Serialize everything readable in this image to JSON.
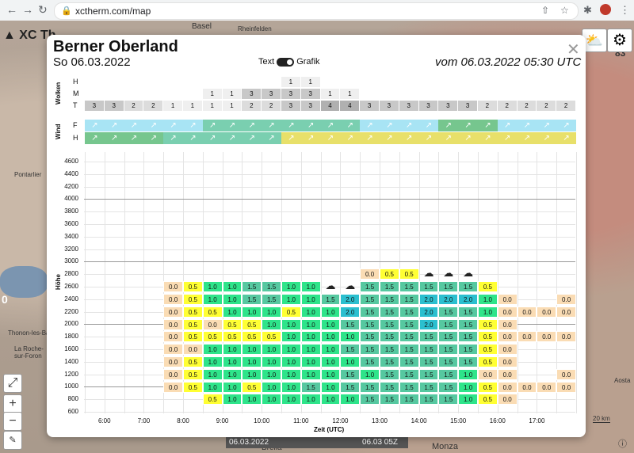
{
  "browser": {
    "url": "xctherm.com/map"
  },
  "map": {
    "app_label": "XC Th",
    "place_labels": [
      "Basel",
      "Rheinfelden",
      "Pontarlier",
      "Thonon-les-Bains",
      "La Roche-sur-Foron",
      "Aosta",
      "Brella",
      "Monza",
      "Bienne"
    ],
    "side_numbers": [
      "83",
      "0"
    ],
    "scale": "20 km",
    "time_left": "06.03.2022",
    "time_right": "06.03 05Z"
  },
  "modal": {
    "title": "Berner Oberland",
    "date": "So 06.03.2022",
    "toggle_text": "Text",
    "toggle_grafik": "Grafik",
    "issued": "vom 06.03.2022 05:30 UTC",
    "wolken_label": "Wolken",
    "wind_label": "Wind",
    "hoehe_label": "Höhe",
    "x_title": "Zeit (UTC)"
  },
  "colors": {
    "yellow": "#ffff33",
    "peach": "#fadcb4",
    "green": "#2ee48a",
    "teal": "#56c8a0",
    "cyan": "#2bbfcf",
    "wind_light": "#a8e4f4",
    "wind_teal": "#7acfb0",
    "wind_green": "#76c68e",
    "wind_yellow": "#e8e06a"
  },
  "clouds": {
    "row_labels": [
      "H",
      "M",
      "T"
    ],
    "H": [
      "",
      "",
      "",
      "",
      "",
      "",
      "",
      "",
      "",
      "",
      "1",
      "1",
      "",
      "",
      "",
      "",
      "",
      "",
      "",
      "",
      "",
      "",
      "",
      "",
      ""
    ],
    "M": [
      "",
      "",
      "",
      "",
      "",
      "",
      "1",
      "1",
      "3",
      "3",
      "3",
      "3",
      "1",
      "1",
      "",
      "",
      "",
      "",
      "",
      "",
      "",
      "",
      "",
      "",
      ""
    ],
    "T": [
      "3",
      "3",
      "2",
      "2",
      "1",
      "1",
      "1",
      "1",
      "2",
      "2",
      "3",
      "3",
      "4",
      "4",
      "3",
      "3",
      "3",
      "3",
      "3",
      "3",
      "2",
      "2",
      "2",
      "2",
      "2"
    ]
  },
  "wind": {
    "row_labels": [
      "F",
      "H"
    ]
  },
  "chart_data": {
    "type": "heatmap",
    "ylabel": "Höhe",
    "xlabel": "Zeit (UTC)",
    "y_ticks": [
      4600,
      4400,
      4200,
      4000,
      3800,
      3600,
      3400,
      3200,
      3000,
      2800,
      2600,
      2400,
      2200,
      2000,
      1800,
      1600,
      1400,
      1200,
      1000,
      800,
      600
    ],
    "x_ticks": [
      "6:00",
      "7:00",
      "8:00",
      "9:00",
      "10:00",
      "11:00",
      "12:00",
      "13:00",
      "14:00",
      "15:00",
      "16:00",
      "17:00"
    ],
    "rows": [
      {
        "alt": 2800,
        "values": [
          "",
          "",
          "",
          "",
          "",
          "",
          "",
          "",
          "",
          "",
          "",
          "",
          "",
          "",
          "0.0",
          "0.5",
          "0.5",
          "",
          "",
          "",
          "",
          "",
          "",
          "",
          ""
        ]
      },
      {
        "alt": 2600,
        "values": [
          "",
          "",
          "",
          "",
          "0.0",
          "0.5",
          "1.0",
          "1.0",
          "1.5",
          "1.5",
          "1.0",
          "1.0",
          "",
          "",
          "1.5",
          "1.5",
          "1.5",
          "1.5",
          "1.5",
          "1.5",
          "0.5",
          "",
          "",
          "",
          ""
        ]
      },
      {
        "alt": 2400,
        "values": [
          "",
          "",
          "",
          "",
          "0.0",
          "0.5",
          "1.0",
          "1.0",
          "1.5",
          "1.5",
          "1.0",
          "1.0",
          "1.5",
          "2.0",
          "1.5",
          "1.5",
          "1.5",
          "2.0",
          "2.0",
          "2.0",
          "1.0",
          "0.0",
          "",
          "",
          "0.0"
        ]
      },
      {
        "alt": 2200,
        "values": [
          "",
          "",
          "",
          "",
          "0.0",
          "0.5",
          "0.5",
          "1.0",
          "1.0",
          "1.0",
          "0.5",
          "1.0",
          "1.0",
          "2.0",
          "1.5",
          "1.5",
          "1.5",
          "2.0",
          "1.5",
          "1.5",
          "1.0",
          "0.0",
          "0.0",
          "0.0",
          "0.0"
        ]
      },
      {
        "alt": 2000,
        "values": [
          "",
          "",
          "",
          "",
          "0.0",
          "0.5",
          "0.0",
          "0.5",
          "0.5",
          "1.0",
          "1.0",
          "1.0",
          "1.0",
          "1.5",
          "1.5",
          "1.5",
          "1.5",
          "2.0",
          "1.5",
          "1.5",
          "0.5",
          "0.0",
          "",
          "",
          ""
        ]
      },
      {
        "alt": 1800,
        "values": [
          "",
          "",
          "",
          "",
          "0.0",
          "0.5",
          "0.5",
          "0.5",
          "0.5",
          "0.5",
          "1.0",
          "1.0",
          "1.0",
          "1.0",
          "1.5",
          "1.5",
          "1.5",
          "1.5",
          "1.5",
          "1.5",
          "0.5",
          "0.0",
          "0.0",
          "0.0",
          "0.0"
        ]
      },
      {
        "alt": 1600,
        "values": [
          "",
          "",
          "",
          "",
          "0.0",
          "0.0",
          "1.0",
          "1.0",
          "1.0",
          "1.0",
          "1.0",
          "1.0",
          "1.0",
          "1.5",
          "1.5",
          "1.5",
          "1.5",
          "1.5",
          "1.5",
          "1.5",
          "0.5",
          "0.0",
          "",
          "",
          ""
        ]
      },
      {
        "alt": 1400,
        "values": [
          "",
          "",
          "",
          "",
          "0.0",
          "0.5",
          "1.0",
          "1.0",
          "1.0",
          "1.0",
          "1.0",
          "1.0",
          "1.0",
          "1.0",
          "1.5",
          "1.5",
          "1.5",
          "1.5",
          "1.5",
          "1.5",
          "0.5",
          "0.0",
          "",
          "",
          ""
        ]
      },
      {
        "alt": 1200,
        "values": [
          "",
          "",
          "",
          "",
          "0.0",
          "0.5",
          "1.0",
          "1.0",
          "1.0",
          "1.0",
          "1.0",
          "1.0",
          "1.0",
          "1.5",
          "1.0",
          "1.5",
          "1.5",
          "1.5",
          "1.5",
          "1.0",
          "0.0",
          "0.0",
          "",
          "",
          "0.0"
        ]
      },
      {
        "alt": 1000,
        "values": [
          "",
          "",
          "",
          "",
          "0.0",
          "0.5",
          "1.0",
          "1.0",
          "0.5",
          "1.0",
          "1.0",
          "1.5",
          "1.0",
          "1.5",
          "1.5",
          "1.5",
          "1.5",
          "1.5",
          "1.5",
          "1.0",
          "0.5",
          "0.0",
          "0.0",
          "0.0",
          "0.0"
        ]
      },
      {
        "alt": 800,
        "values": [
          "",
          "",
          "",
          "",
          "",
          "",
          "0.5",
          "1.0",
          "1.0",
          "1.0",
          "1.0",
          "1.0",
          "1.0",
          "1.0",
          "1.5",
          "1.5",
          "1.5",
          "1.5",
          "1.5",
          "1.0",
          "0.5",
          "0.0",
          "",
          "",
          ""
        ]
      }
    ],
    "cloud_icons": [
      {
        "col": 12,
        "alt": 2600
      },
      {
        "col": 13,
        "alt": 2600
      },
      {
        "col": 17,
        "alt": 2800
      },
      {
        "col": 18,
        "alt": 2800
      },
      {
        "col": 19,
        "alt": 2800
      }
    ],
    "ref_lines": [
      1000,
      2000,
      3000,
      4000
    ]
  }
}
